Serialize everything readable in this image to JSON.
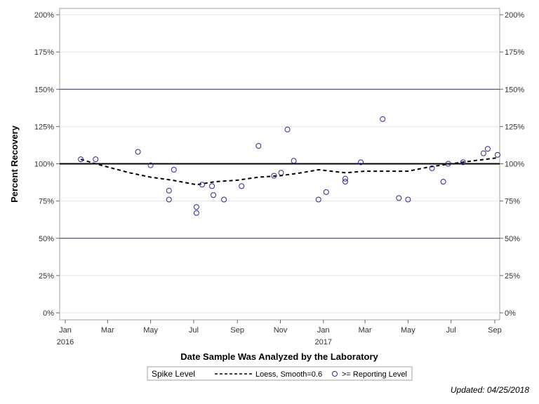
{
  "chart_data": {
    "type": "scatter",
    "ylabel": "Percent Recovery",
    "xlabel": "Date Sample Was Analyzed by the Laboratory",
    "ylim": [
      0,
      200
    ],
    "y_ticks": [
      0,
      25,
      50,
      75,
      100,
      125,
      150,
      175,
      200
    ],
    "y_tick_labels": [
      "0%",
      "25%",
      "50%",
      "75%",
      "100%",
      "125%",
      "150%",
      "175%",
      "200%"
    ],
    "xlim": [
      "2015-12-24",
      "2017-09-08"
    ],
    "x_ticks": [
      {
        "date": "2016-01-01",
        "label": "Jan",
        "year": "2016"
      },
      {
        "date": "2016-03-01",
        "label": "Mar",
        "year": ""
      },
      {
        "date": "2016-05-01",
        "label": "May",
        "year": ""
      },
      {
        "date": "2016-07-01",
        "label": "Jul",
        "year": ""
      },
      {
        "date": "2016-09-01",
        "label": "Sep",
        "year": ""
      },
      {
        "date": "2016-11-01",
        "label": "Nov",
        "year": ""
      },
      {
        "date": "2017-01-01",
        "label": "Jan",
        "year": "2017"
      },
      {
        "date": "2017-03-01",
        "label": "Mar",
        "year": ""
      },
      {
        "date": "2017-05-01",
        "label": "May",
        "year": ""
      },
      {
        "date": "2017-07-01",
        "label": "Jul",
        "year": ""
      },
      {
        "date": "2017-09-01",
        "label": "Sep",
        "year": ""
      }
    ],
    "reference_lines": [
      {
        "y": 100,
        "color": "#000000",
        "width": 2
      },
      {
        "y": 150,
        "color": "#2a2a8c",
        "width": 1
      },
      {
        "y": 50,
        "color": "#2a2a8c",
        "width": 1
      }
    ],
    "grid": true,
    "legend_position": "bottom",
    "legend": {
      "title": "Spike Level",
      "items": [
        {
          "label": "Loess, Smooth=0.6",
          "kind": "dashed-line"
        },
        {
          "label": ">= Reporting Level",
          "kind": "circle"
        }
      ]
    },
    "series": [
      {
        "name": ">= Reporting Level",
        "kind": "scatter",
        "color": "#2a2a8c",
        "points": [
          {
            "x": "2016-01-23",
            "y": 103
          },
          {
            "x": "2016-02-13",
            "y": 103
          },
          {
            "x": "2016-04-13",
            "y": 108
          },
          {
            "x": "2016-05-01",
            "y": 99
          },
          {
            "x": "2016-05-27",
            "y": 82
          },
          {
            "x": "2016-05-27",
            "y": 76
          },
          {
            "x": "2016-06-03",
            "y": 96
          },
          {
            "x": "2016-07-05",
            "y": 71
          },
          {
            "x": "2016-07-05",
            "y": 67
          },
          {
            "x": "2016-07-13",
            "y": 86
          },
          {
            "x": "2016-07-27",
            "y": 85
          },
          {
            "x": "2016-07-29",
            "y": 79
          },
          {
            "x": "2016-08-13",
            "y": 76
          },
          {
            "x": "2016-09-07",
            "y": 85
          },
          {
            "x": "2016-10-01",
            "y": 112
          },
          {
            "x": "2016-10-23",
            "y": 92
          },
          {
            "x": "2016-11-02",
            "y": 94
          },
          {
            "x": "2016-11-11",
            "y": 123
          },
          {
            "x": "2016-11-20",
            "y": 102
          },
          {
            "x": "2016-12-25",
            "y": 76
          },
          {
            "x": "2017-01-05",
            "y": 81
          },
          {
            "x": "2017-02-01",
            "y": 90
          },
          {
            "x": "2017-02-01",
            "y": 88
          },
          {
            "x": "2017-02-23",
            "y": 101
          },
          {
            "x": "2017-03-26",
            "y": 130
          },
          {
            "x": "2017-04-18",
            "y": 77
          },
          {
            "x": "2017-05-01",
            "y": 76
          },
          {
            "x": "2017-06-04",
            "y": 97
          },
          {
            "x": "2017-06-20",
            "y": 88
          },
          {
            "x": "2017-06-27",
            "y": 100
          },
          {
            "x": "2017-07-18",
            "y": 101
          },
          {
            "x": "2017-08-16",
            "y": 107
          },
          {
            "x": "2017-08-22",
            "y": 110
          },
          {
            "x": "2017-09-05",
            "y": 106
          }
        ]
      },
      {
        "name": "Loess, Smooth=0.6",
        "kind": "line",
        "dash": "dashed",
        "color": "#000000",
        "points": [
          {
            "x": "2016-01-23",
            "y": 103
          },
          {
            "x": "2016-02-13",
            "y": 100
          },
          {
            "x": "2016-04-01",
            "y": 94
          },
          {
            "x": "2016-05-01",
            "y": 91
          },
          {
            "x": "2016-06-01",
            "y": 89
          },
          {
            "x": "2016-07-05",
            "y": 86
          },
          {
            "x": "2016-08-01",
            "y": 88
          },
          {
            "x": "2016-09-01",
            "y": 89
          },
          {
            "x": "2016-10-01",
            "y": 91
          },
          {
            "x": "2016-11-01",
            "y": 92
          },
          {
            "x": "2016-12-01",
            "y": 94
          },
          {
            "x": "2016-12-25",
            "y": 96
          },
          {
            "x": "2017-02-01",
            "y": 94
          },
          {
            "x": "2017-03-01",
            "y": 95
          },
          {
            "x": "2017-04-01",
            "y": 95
          },
          {
            "x": "2017-05-01",
            "y": 95
          },
          {
            "x": "2017-06-01",
            "y": 98
          },
          {
            "x": "2017-07-01",
            "y": 100
          },
          {
            "x": "2017-08-01",
            "y": 102
          },
          {
            "x": "2017-09-05",
            "y": 104
          }
        ]
      }
    ]
  },
  "footer": {
    "updated": "Updated: 04/25/2018"
  }
}
